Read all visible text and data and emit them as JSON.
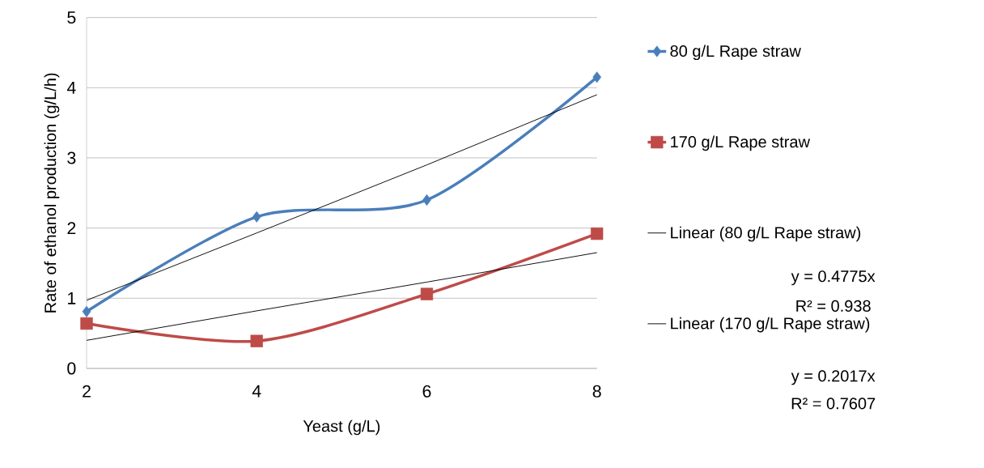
{
  "chart_data": {
    "type": "line",
    "xlabel": "Yeast (g/L)",
    "ylabel": "Rate of ethanol production  (g/L/h)",
    "categories": [
      "2",
      "4",
      "6",
      "8"
    ],
    "series": [
      {
        "name": "80 g/L Rape straw",
        "color": "#4a7ebb",
        "marker": "diamond",
        "values": [
          0.81,
          2.16,
          2.4,
          4.15
        ]
      },
      {
        "name": "170 g/L Rape straw",
        "color": "#be4b48",
        "marker": "square",
        "values": [
          0.64,
          0.39,
          1.06,
          1.92
        ]
      },
      {
        "name": "Linear (80 g/L Rape straw)",
        "color": "#000000",
        "marker": "none",
        "values": [
          0.97,
          1.93,
          2.9,
          3.9
        ]
      },
      {
        "name": "Linear (170 g/L Rape straw)",
        "color": "#000000",
        "marker": "none",
        "values": [
          0.4,
          0.82,
          1.23,
          1.65
        ]
      }
    ],
    "ylim": [
      0,
      5
    ],
    "yticks": [
      0,
      1,
      2,
      3,
      4,
      5
    ],
    "grid": "y",
    "legend": "right",
    "annotations": [
      "y = 0.4775x",
      "R² = 0.938",
      "y = 0.2017x",
      "R² = 0.7607"
    ]
  }
}
